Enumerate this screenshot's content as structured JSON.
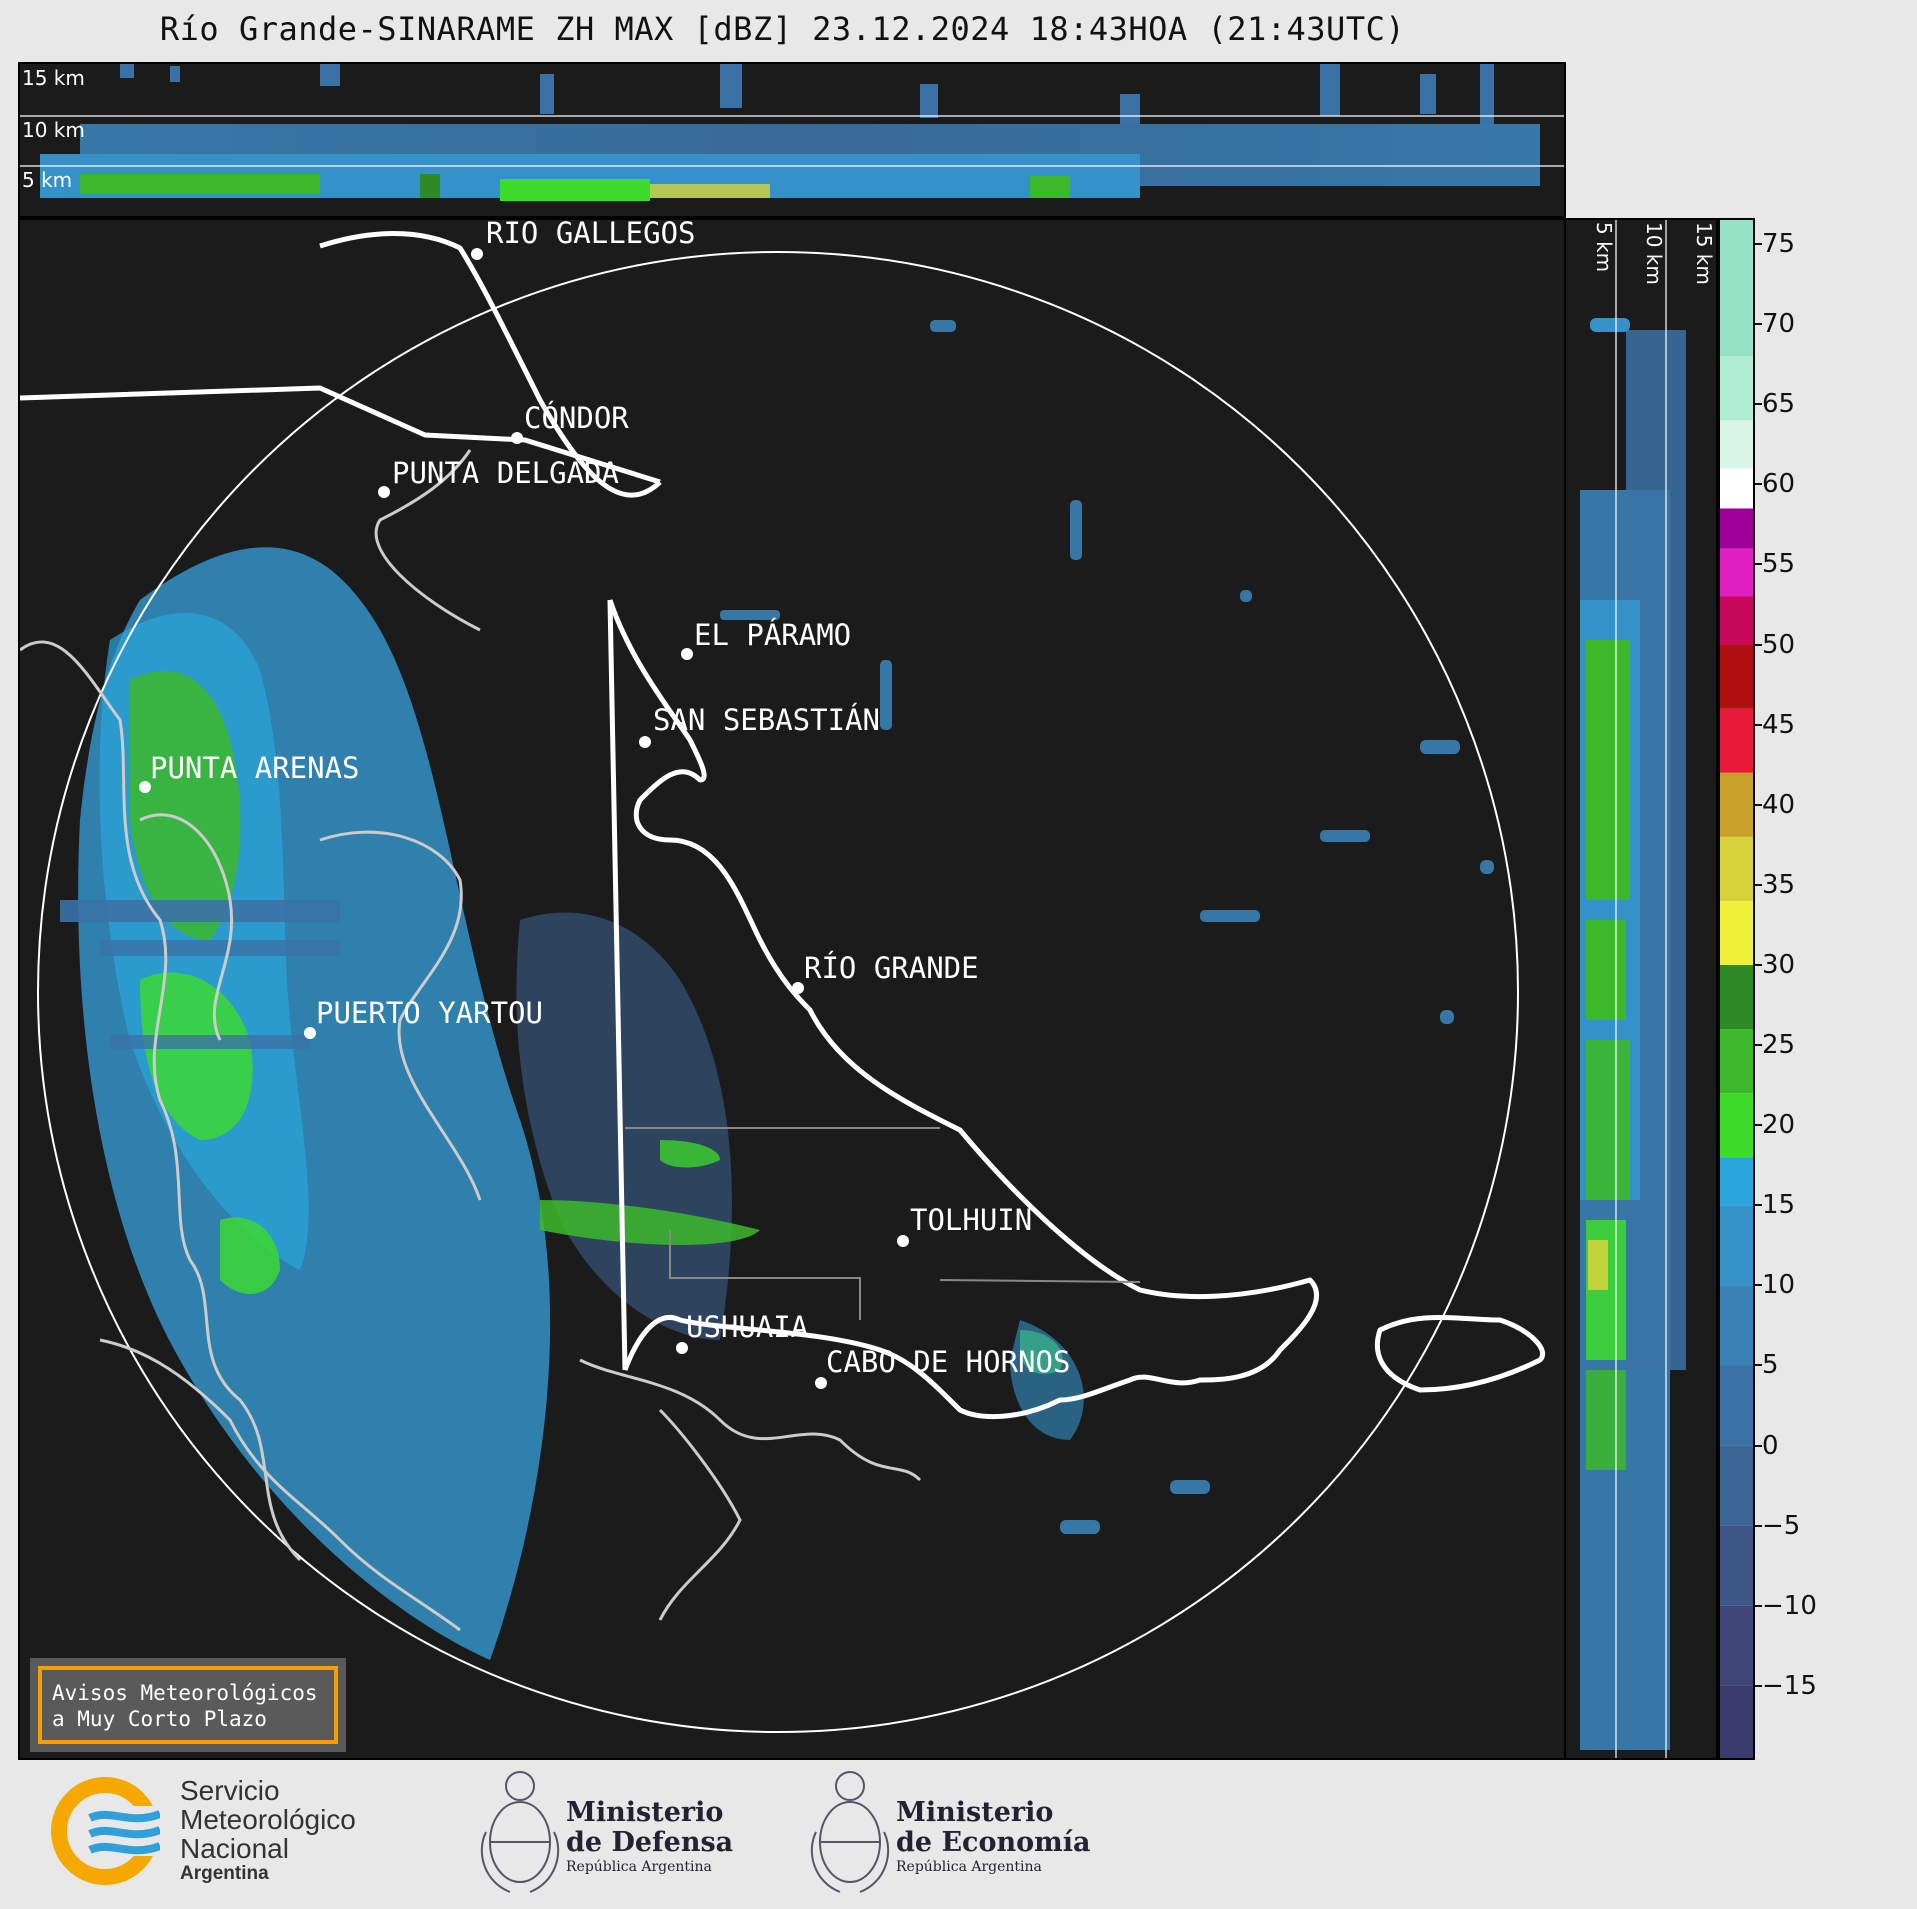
{
  "title": "Río Grande-SINARAME ZH MAX [dBZ] 23.12.2024 18:43HOA (21:43UTC)",
  "altitude_labels": [
    "15 km",
    "10 km",
    "5 km"
  ],
  "cities": [
    {
      "name": "RÍO GALLEGOS"
    },
    {
      "name": "CÓNDOR"
    },
    {
      "name": "PUNTA DELGADA"
    },
    {
      "name": "EL PÁRAMO"
    },
    {
      "name": "SAN SEBASTIÁN"
    },
    {
      "name": "PUNTA ARENAS"
    },
    {
      "name": "RÍO GRANDE"
    },
    {
      "name": "PUERTO YARTOU"
    },
    {
      "name": "TOLHUIN"
    },
    {
      "name": "USHUAIA"
    },
    {
      "name": "CABO DE HORNOS"
    }
  ],
  "colorbar": {
    "unit": "dBZ",
    "min": -19.5,
    "max": 76.5,
    "ticks": [
      "75",
      "70",
      "65",
      "60",
      "55",
      "50",
      "45",
      "40",
      "35",
      "30",
      "25",
      "20",
      "15",
      "10",
      "5",
      "0",
      "−5",
      "−10",
      "−15"
    ],
    "tick_values": [
      75,
      70,
      65,
      60,
      55,
      50,
      45,
      40,
      35,
      30,
      25,
      20,
      15,
      10,
      5,
      0,
      -5,
      -10,
      -15
    ],
    "stops": [
      {
        "from": -19.5,
        "color": "#3b3b6e"
      },
      {
        "from": -15,
        "color": "#3f477a"
      },
      {
        "from": -10,
        "color": "#3e5687"
      },
      {
        "from": -5,
        "color": "#3d6596"
      },
      {
        "from": 0,
        "color": "#3b72a6"
      },
      {
        "from": 5,
        "color": "#3a82b6"
      },
      {
        "from": 10,
        "color": "#3492c8"
      },
      {
        "from": 15,
        "color": "#2aa6dc"
      },
      {
        "from": 18,
        "color": "#3ddc2a"
      },
      {
        "from": 22,
        "color": "#3cb82a"
      },
      {
        "from": 26,
        "color": "#2e8a24"
      },
      {
        "from": 30,
        "color": "#f0f03a"
      },
      {
        "from": 34,
        "color": "#d8d23a"
      },
      {
        "from": 38,
        "color": "#c8a02a"
      },
      {
        "from": 42,
        "color": "#e81a3a"
      },
      {
        "from": 46,
        "color": "#b01010"
      },
      {
        "from": 50,
        "color": "#c8085a"
      },
      {
        "from": 53,
        "color": "#e020c0"
      },
      {
        "from": 56,
        "color": "#a0009a"
      },
      {
        "from": 58.5,
        "color": "#ffffff"
      },
      {
        "from": 61,
        "color": "#d8f5e8"
      },
      {
        "from": 64,
        "color": "#b0ecd4"
      },
      {
        "from": 68,
        "color": "#96e2c6"
      }
    ]
  },
  "notice": {
    "line1": "Avisos Meteorológicos",
    "line2": "a Muy Corto Plazo"
  },
  "logos": {
    "smn": {
      "line1": "Servicio",
      "line2": "Meteorológico",
      "line3": "Nacional",
      "line4": "Argentina"
    },
    "defensa": {
      "line1": "Ministerio",
      "line2": "de Defensa",
      "line3": "República Argentina"
    },
    "economia": {
      "line1": "Ministerio",
      "line2": "de Economía",
      "line3": "República Argentina"
    }
  },
  "colors": {
    "background": "#1b1b1b",
    "coast": "#ffffff",
    "notice_border": "#f5a000",
    "smn_orange": "#f5a800",
    "smn_blue": "#2fa0dc"
  }
}
